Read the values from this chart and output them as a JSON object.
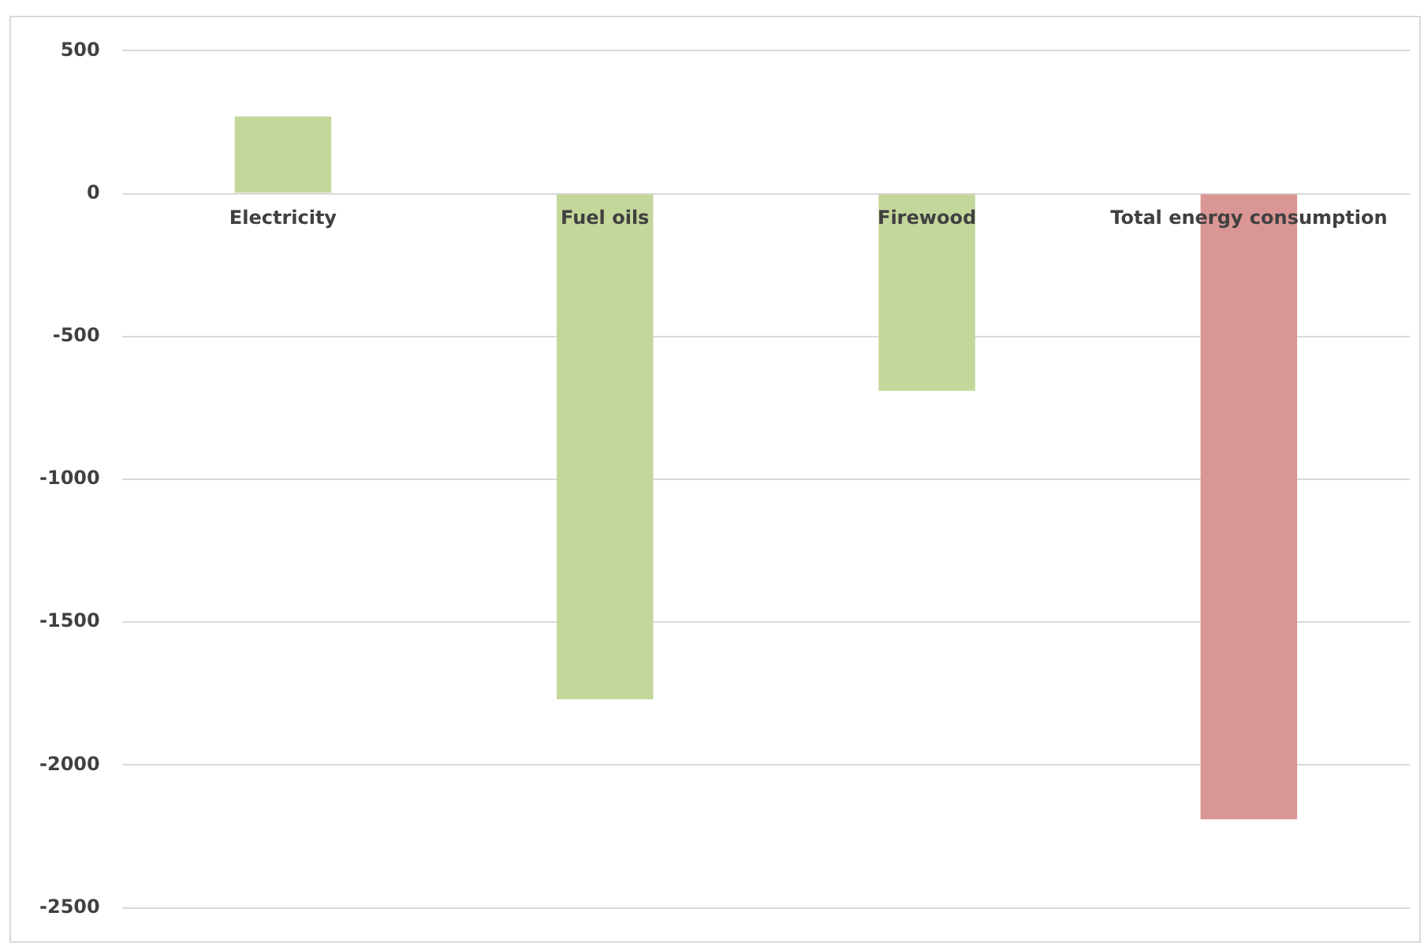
{
  "chart_data": {
    "type": "bar",
    "categories": [
      "Electricity",
      "Fuel oils",
      "Firewood",
      "Total energy consumption"
    ],
    "values": [
      270,
      -1770,
      -690,
      -2190
    ],
    "colors": [
      "#c4d79b",
      "#c4d79b",
      "#c4d79b",
      "#da9694"
    ],
    "ylim": [
      -2500,
      500
    ],
    "yticks": [
      -2500,
      -2000,
      -1500,
      -1000,
      -500,
      0,
      500
    ],
    "grid": "y",
    "legend": false
  }
}
